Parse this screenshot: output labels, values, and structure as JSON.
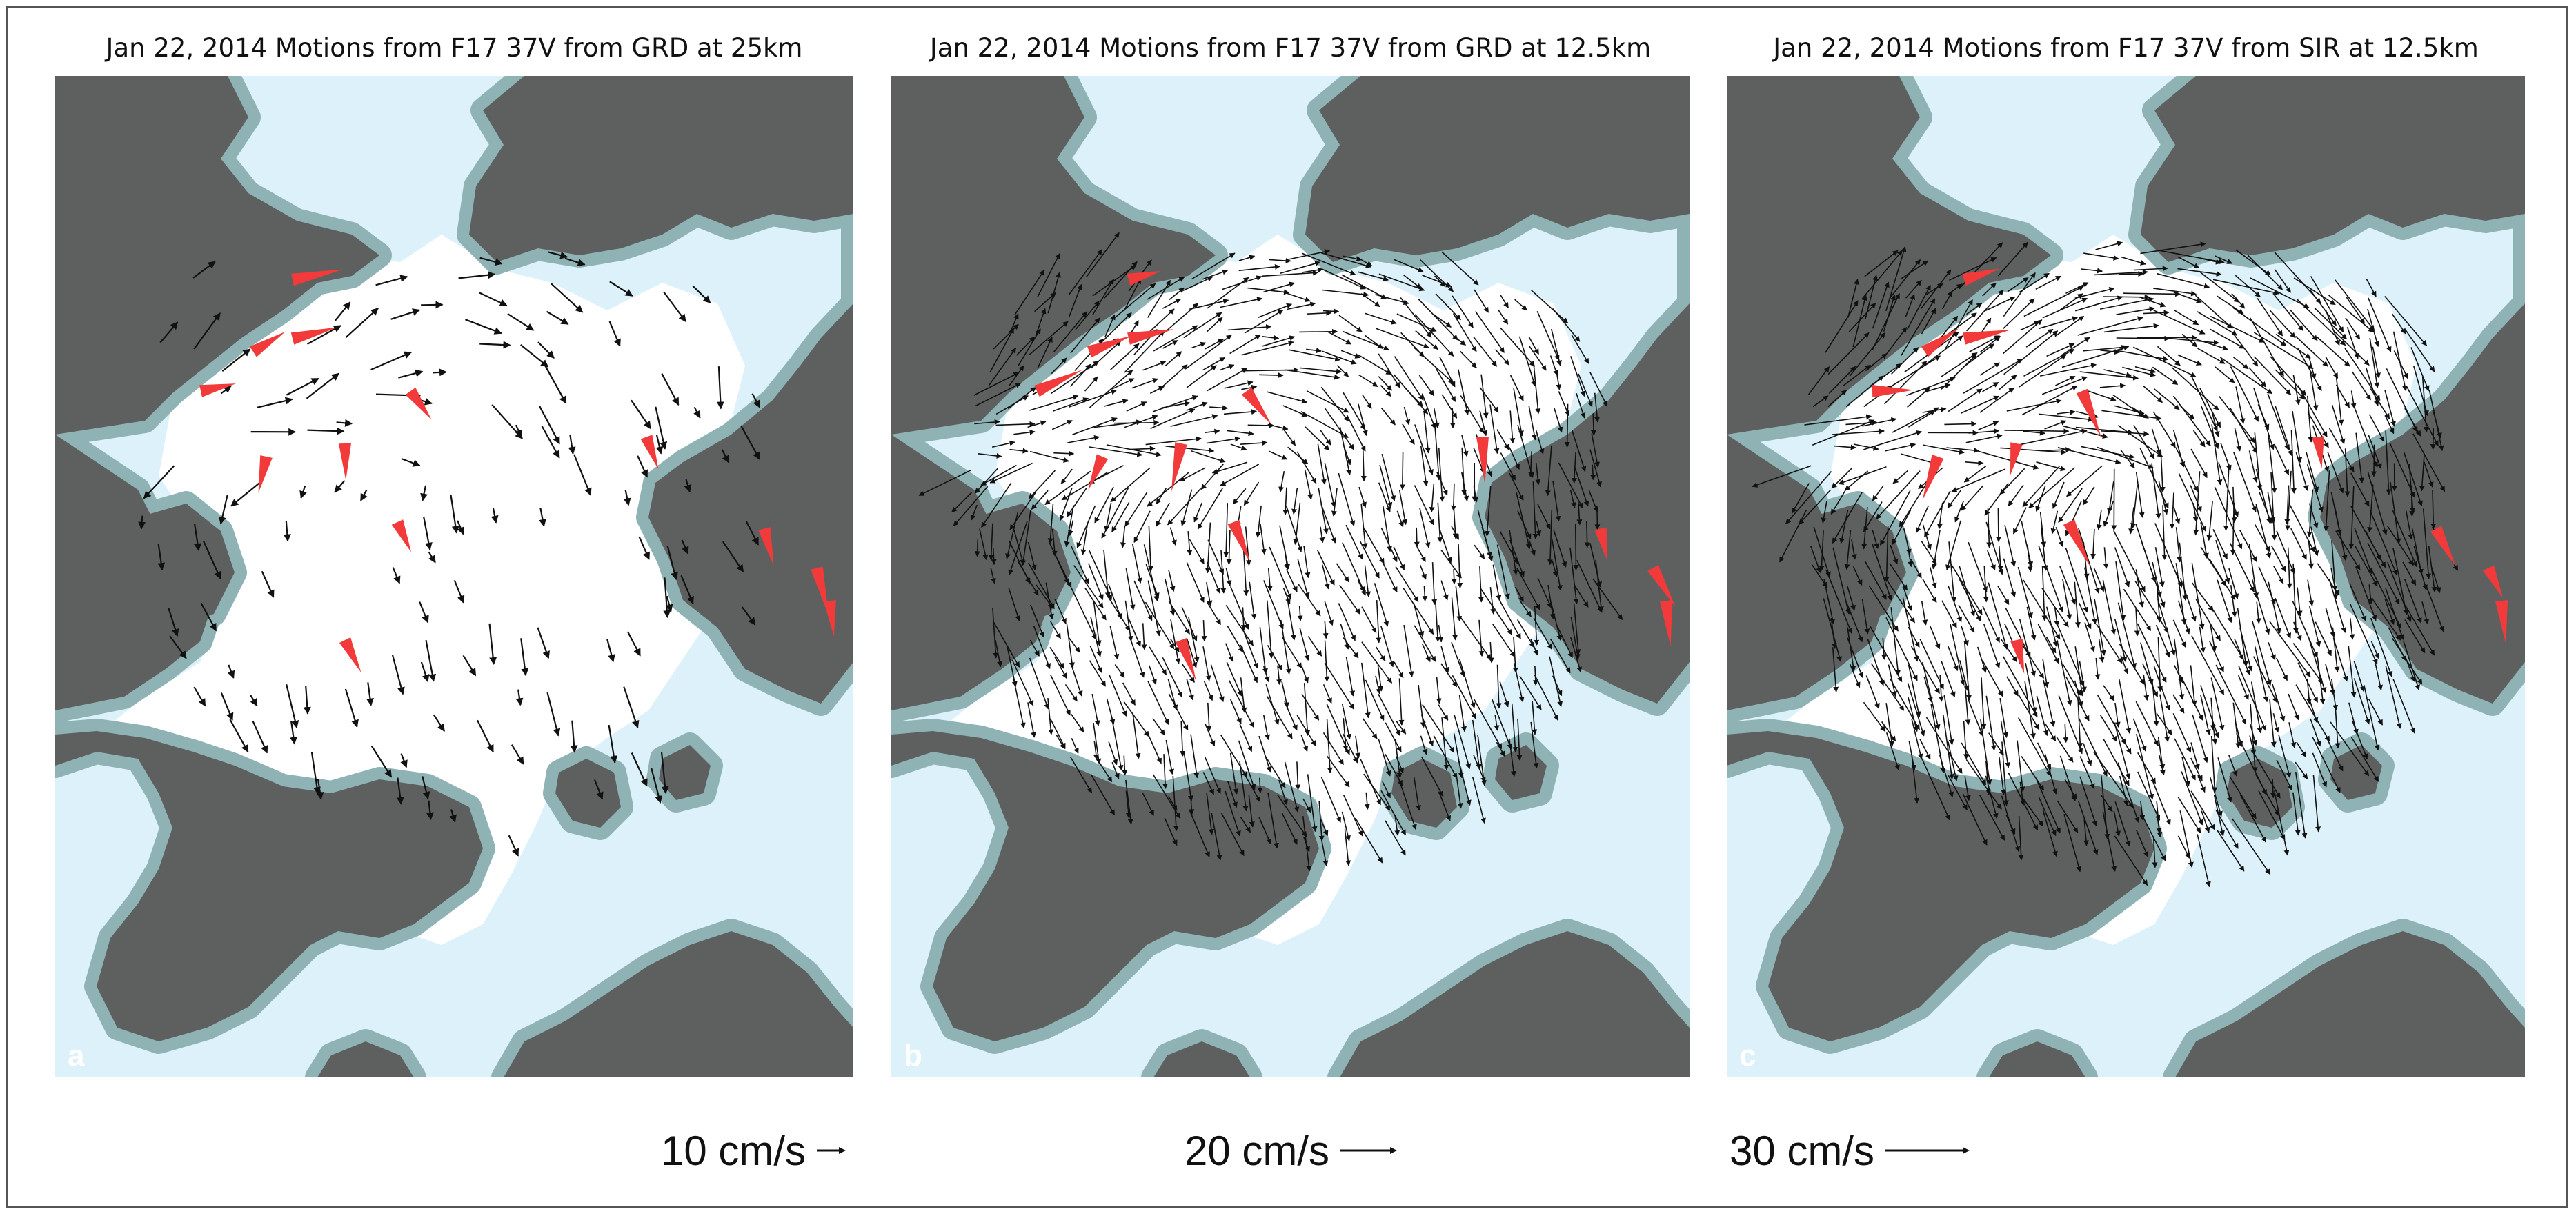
{
  "panels": [
    {
      "title": "Jan 22, 2014 Motions from F17 37V from GRD at 25km",
      "letter": "a",
      "scale_label": "10 cm/s",
      "density": 0.35,
      "arrow_len": 55
    },
    {
      "title": "Jan 22, 2014 Motions from F17 37V from GRD at 12.5km",
      "letter": "b",
      "scale_label": "20 cm/s",
      "density": 0.9,
      "arrow_len": 70
    },
    {
      "title": "Jan 22, 2014 Motions from F17 37V from SIR at 12.5km",
      "letter": "c",
      "scale_label": "30 cm/s",
      "density": 1.0,
      "arrow_len": 85
    }
  ],
  "colors": {
    "land": "#5e605f",
    "coast": "#8fb3b5",
    "ocean": "#dcf1f9",
    "ice": "#ffffff",
    "vector": "#111111",
    "highlight_vector": "#f23a3a"
  }
}
